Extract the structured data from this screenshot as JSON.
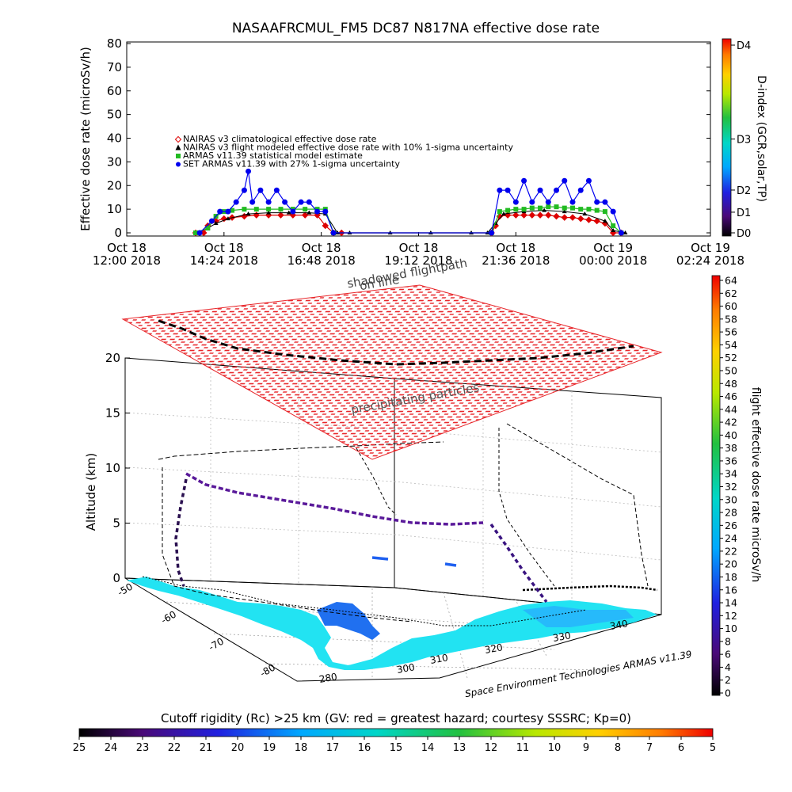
{
  "chart_data": [
    {
      "type": "line",
      "title": "NASAAFRCMUL_FM5 DC87 N817NA effective dose rate",
      "ylabel": "Effective dose rate (microSv/h)",
      "xlabel": "",
      "ylim": [
        0,
        80
      ],
      "y_ticks": [
        0,
        10,
        20,
        30,
        40,
        50,
        60,
        70,
        80
      ],
      "x_range_hours": [
        0,
        14.4
      ],
      "x_ticks": [
        {
          "h": 0,
          "line1": "Oct 18",
          "line2": "12:00 2018"
        },
        {
          "h": 2.4,
          "line1": "Oct 18",
          "line2": "14:24 2018"
        },
        {
          "h": 4.8,
          "line1": "Oct 18",
          "line2": "16:48 2018"
        },
        {
          "h": 7.2,
          "line1": "Oct 18",
          "line2": "19:12 2018"
        },
        {
          "h": 9.6,
          "line1": "Oct 18",
          "line2": "21:36 2018"
        },
        {
          "h": 12,
          "line1": "Oct 19",
          "line2": "00:00 2018"
        },
        {
          "h": 14.4,
          "line1": "Oct 19",
          "line2": "02:24 2018"
        }
      ],
      "grid": false,
      "legend_position": "upper-left",
      "legend": [
        {
          "label": "NAIRAS v3 climatological effective dose rate",
          "color": "#dd0000",
          "marker": "diamond"
        },
        {
          "label": "NAIRAS v3 flight modeled effective dose rate with 10% 1-sigma uncertainty",
          "color": "#000000",
          "marker": "triangle"
        },
        {
          "label": "ARMAS v11.39 statistical model estimate",
          "color": "#22bb22",
          "marker": "square"
        },
        {
          "label": "SET ARMAS v11.39 with 27% 1-sigma uncertainty",
          "color": "#0000ee",
          "marker": "circle"
        }
      ],
      "series": [
        {
          "name": "NAIRAS v3 climatological effective dose rate",
          "color": "#dd0000",
          "x": [
            1.7,
            1.9,
            2.0,
            2.2,
            2.4,
            2.6,
            2.9,
            3.2,
            3.5,
            3.8,
            4.1,
            4.4,
            4.7,
            4.9,
            5.1,
            5.3,
            9.0,
            9.1,
            9.2,
            9.4,
            9.6,
            9.8,
            10.0,
            10.2,
            10.4,
            10.6,
            10.8,
            11.0,
            11.2,
            11.4,
            11.6,
            11.8,
            12.0,
            12.2
          ],
          "y": [
            0,
            0,
            3,
            5,
            6,
            6.5,
            7,
            7.5,
            7.5,
            7.5,
            7.5,
            7.5,
            7.5,
            3,
            0,
            0,
            0,
            3,
            7,
            7.5,
            7.5,
            7.5,
            7.5,
            7.5,
            7.5,
            7,
            6.5,
            6.5,
            6,
            5.5,
            5,
            4,
            0,
            0
          ]
        },
        {
          "name": "NAIRAS v3 flight modeled effective dose rate with 10% 1-sigma uncertainty",
          "color": "#000000",
          "x": [
            1.7,
            2.0,
            2.2,
            2.5,
            3.0,
            3.5,
            4.0,
            4.5,
            4.9,
            5.2,
            5.5,
            6.5,
            7.5,
            8.5,
            8.9,
            9.1,
            9.3,
            9.8,
            10.3,
            10.8,
            11.3,
            11.8,
            12.0,
            12.3
          ],
          "y": [
            0,
            2,
            4,
            6,
            8,
            8.5,
            8.5,
            8.5,
            8,
            0,
            0,
            0,
            0,
            0,
            0,
            4,
            8,
            9,
            9.5,
            9,
            8,
            5,
            1,
            0
          ]
        },
        {
          "name": "ARMAS v11.39 statistical model estimate",
          "color": "#22bb22",
          "x": [
            1.7,
            2.0,
            2.2,
            2.4,
            2.6,
            2.9,
            3.2,
            3.5,
            3.8,
            4.1,
            4.4,
            4.7,
            4.9,
            5.1,
            9.0,
            9.2,
            9.4,
            9.6,
            9.8,
            10.0,
            10.2,
            10.4,
            10.6,
            10.8,
            11.0,
            11.2,
            11.4,
            11.6,
            11.8,
            12.0,
            12.2
          ],
          "y": [
            0,
            2,
            7,
            9,
            9.5,
            10,
            10,
            10,
            10,
            10,
            10,
            10,
            10,
            0,
            0,
            9,
            9.5,
            10,
            10,
            10.5,
            10.5,
            11,
            11,
            10.5,
            10.5,
            10,
            10,
            9.5,
            9,
            3,
            0
          ]
        },
        {
          "name": "SET ARMAS v11.39 with 27% 1-sigma uncertainty",
          "color": "#0000ee",
          "x": [
            1.8,
            2.1,
            2.3,
            2.5,
            2.7,
            2.9,
            3.0,
            3.1,
            3.3,
            3.5,
            3.7,
            3.9,
            4.1,
            4.3,
            4.5,
            4.7,
            4.9,
            5.1,
            9.0,
            9.2,
            9.4,
            9.6,
            9.8,
            10.0,
            10.2,
            10.4,
            10.6,
            10.8,
            11.0,
            11.2,
            11.4,
            11.6,
            11.8,
            12.0,
            12.2
          ],
          "y": [
            0,
            5,
            9,
            9,
            13,
            18,
            26,
            13,
            18,
            13,
            18,
            13,
            9,
            13,
            13,
            9,
            9,
            0,
            0,
            18,
            18,
            13,
            22,
            13,
            18,
            13,
            18,
            22,
            13,
            18,
            22,
            13,
            13,
            9,
            0
          ]
        }
      ]
    },
    {
      "type": "scatter",
      "subtype": "3d-flight-path",
      "zlabel": "Altitude (km)",
      "z_ticks": [
        0,
        5,
        10,
        15,
        20
      ],
      "lat_ticks": [
        -50,
        -60,
        -70,
        -80
      ],
      "lon_ticks": [
        280,
        300,
        310,
        320,
        330,
        340
      ],
      "labels": {
        "shadowed": "shadowed flightpath",
        "shadowed_line2": "on line",
        "precip": "precipitating particles",
        "credit": "Space Environment Technologies ARMAS v11.39"
      },
      "colors": {
        "precip_grid": "#e8262a",
        "land": "#22e3f2",
        "flightpath": "#000000"
      }
    }
  ],
  "colorbars": {
    "dindex": {
      "label": "D-index (GCR,solar,TP)",
      "ticks": [
        {
          "label": "D4",
          "frac": 1.0
        },
        {
          "label": "D3",
          "frac": 0.5
        },
        {
          "label": "D2",
          "frac": 0.228
        },
        {
          "label": "D1",
          "frac": 0.11
        },
        {
          "label": "D0",
          "frac": 0.0
        }
      ]
    },
    "flight_dose": {
      "label": "flight effective dose rate microSv/h",
      "ticks": [
        "0",
        "2",
        "4",
        "6",
        "8",
        "10",
        "12",
        "14",
        "16",
        "18",
        "20",
        "22",
        "24",
        "26",
        "28",
        "30",
        "32",
        "34",
        "36",
        "38",
        "40",
        "42",
        "44",
        "46",
        "48",
        "50",
        "52",
        "54",
        "56",
        "58",
        "60",
        "62",
        "64"
      ]
    },
    "cutoff": {
      "title": "Cutoff rigidity (Rc) >25 km (GV: red = greatest hazard; courtesy SSSRC; Kp=0)",
      "ticks": [
        "25",
        "24",
        "23",
        "22",
        "21",
        "20",
        "19",
        "18",
        "17",
        "16",
        "15",
        "14",
        "13",
        "12",
        "11",
        "10",
        "9",
        "8",
        "7",
        "6",
        "5"
      ]
    }
  }
}
